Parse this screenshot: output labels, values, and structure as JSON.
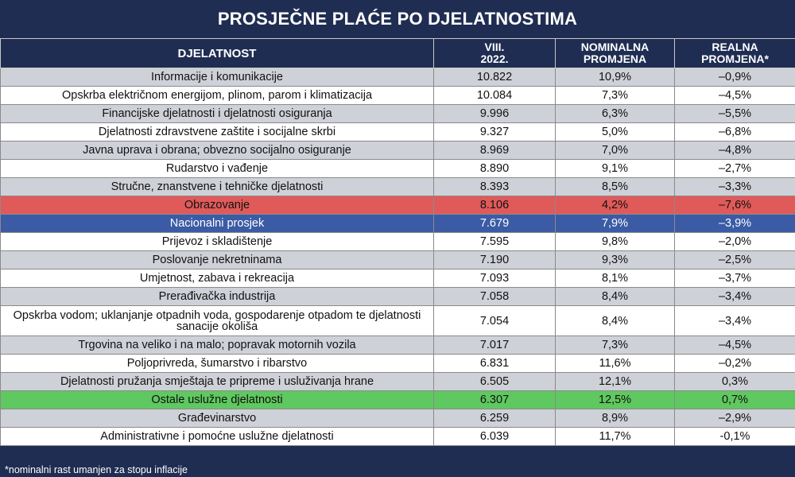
{
  "title": "PROSJEČNE PLAĆE PO DJELATNOSTIMA",
  "headers": {
    "activity": "DJELATNOST",
    "period_line1": "VIII.",
    "period_line2": "2022.",
    "nominal_line1": "NOMINALNA",
    "nominal_line2": "PROMJENA",
    "real_line1": "REALNA",
    "real_line2": "PROMJENA*"
  },
  "rows": [
    {
      "activity": "Informacije i komunikacije",
      "salary": "10.822",
      "nominal": "10,9%",
      "real": "–0,9%",
      "style": "odd"
    },
    {
      "activity": "Opskrba električnom energijom, plinom, parom i klimatizacija",
      "salary": "10.084",
      "nominal": "7,3%",
      "real": "–4,5%",
      "style": "even"
    },
    {
      "activity": "Financijske djelatnosti i djelatnosti osiguranja",
      "salary": "9.996",
      "nominal": "6,3%",
      "real": "–5,5%",
      "style": "odd"
    },
    {
      "activity": "Djelatnosti zdravstvene zaštite i socijalne skrbi",
      "salary": "9.327",
      "nominal": "5,0%",
      "real": "–6,8%",
      "style": "even"
    },
    {
      "activity": "Javna uprava i obrana; obvezno socijalno osiguranje",
      "salary": "8.969",
      "nominal": "7,0%",
      "real": "–4,8%",
      "style": "odd"
    },
    {
      "activity": "Rudarstvo i vađenje",
      "salary": "8.890",
      "nominal": "9,1%",
      "real": "–2,7%",
      "style": "even"
    },
    {
      "activity": "Stručne, znanstvene i tehničke djelatnosti",
      "salary": "8.393",
      "nominal": "8,5%",
      "real": "–3,3%",
      "style": "odd"
    },
    {
      "activity": "Obrazovanje",
      "salary": "8.106",
      "nominal": "4,2%",
      "real": "–7,6%",
      "style": "red"
    },
    {
      "activity": "Nacionalni prosjek",
      "salary": "7.679",
      "nominal": "7,9%",
      "real": "–3,9%",
      "style": "blue"
    },
    {
      "activity": "Prijevoz i skladištenje",
      "salary": "7.595",
      "nominal": "9,8%",
      "real": "–2,0%",
      "style": "even"
    },
    {
      "activity": "Poslovanje nekretninama",
      "salary": "7.190",
      "nominal": "9,3%",
      "real": "–2,5%",
      "style": "odd"
    },
    {
      "activity": "Umjetnost, zabava i rekreacija",
      "salary": "7.093",
      "nominal": "8,1%",
      "real": "–3,7%",
      "style": "even"
    },
    {
      "activity": "Prerađivačka industrija",
      "salary": "7.058",
      "nominal": "8,4%",
      "real": "–3,4%",
      "style": "odd"
    },
    {
      "activity": "Opskrba vodom; uklanjanje otpadnih voda, gospodarenje otpadom te djelatnosti sanacije okoliša",
      "salary": "7.054",
      "nominal": "8,4%",
      "real": "–3,4%",
      "style": "even tall"
    },
    {
      "activity": "Trgovina na veliko i na malo; popravak motornih vozila",
      "salary": "7.017",
      "nominal": "7,3%",
      "real": "–4,5%",
      "style": "odd"
    },
    {
      "activity": "Poljoprivreda, šumarstvo i ribarstvo",
      "salary": "6.831",
      "nominal": "11,6%",
      "real": "–0,2%",
      "style": "even"
    },
    {
      "activity": "Djelatnosti pružanja smještaja te pripreme i usluživanja hrane",
      "salary": "6.505",
      "nominal": "12,1%",
      "real": "0,3%",
      "style": "odd"
    },
    {
      "activity": "Ostale uslužne djelatnosti",
      "salary": "6.307",
      "nominal": "12,5%",
      "real": "0,7%",
      "style": "green"
    },
    {
      "activity": "Građevinarstvo",
      "salary": "6.259",
      "nominal": "8,9%",
      "real": "–2,9%",
      "style": "odd"
    },
    {
      "activity": "Administrativne i pomoćne uslužne djelatnosti",
      "salary": "6.039",
      "nominal": "11,7%",
      "real": "-0,1%",
      "style": "even"
    }
  ],
  "footnote": "*nominalni rast umanjen za stopu inflacije"
}
